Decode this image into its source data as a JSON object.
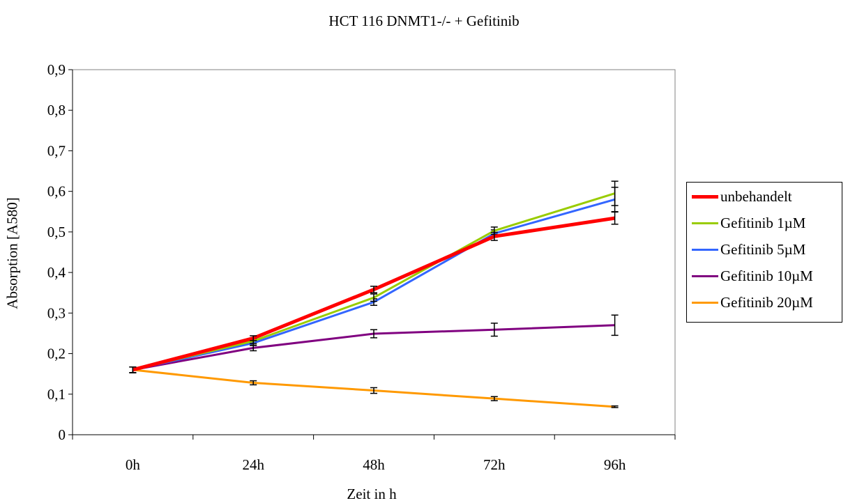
{
  "chart_data": {
    "type": "line",
    "title": "HCT 116 DNMT1-/- + Gefitinib",
    "xlabel": "Zeit in h",
    "ylabel": "Absorption [A580]",
    "categories": [
      "0h",
      "24h",
      "48h",
      "72h",
      "96h"
    ],
    "ylim": [
      0,
      0.9
    ],
    "yticks": [
      "0",
      "0,1",
      "0,2",
      "0,3",
      "0,4",
      "0,5",
      "0,6",
      "0,7",
      "0,8",
      "0,9"
    ],
    "grid": false,
    "legend_position": "right",
    "series": [
      {
        "name": "unbehandelt",
        "color": "#ff0000",
        "width": 5,
        "values": [
          0.16,
          0.238,
          0.358,
          0.489,
          0.534
        ],
        "errors": [
          0.007,
          0.006,
          0.008,
          0.01,
          0.015
        ]
      },
      {
        "name": "Gefitinib 1µM",
        "color": "#99cc00",
        "width": 3,
        "values": [
          0.16,
          0.231,
          0.338,
          0.503,
          0.595
        ],
        "errors": [
          0.007,
          0.006,
          0.009,
          0.009,
          0.03
        ]
      },
      {
        "name": "Gefitinib 5µM",
        "color": "#3366ff",
        "width": 3,
        "values": [
          0.16,
          0.226,
          0.327,
          0.496,
          0.58
        ],
        "errors": [
          0.007,
          0.006,
          0.008,
          0.009,
          0.03
        ]
      },
      {
        "name": "Gefitinib 10µM",
        "color": "#800080",
        "width": 3,
        "values": [
          0.16,
          0.214,
          0.249,
          0.259,
          0.27
        ],
        "errors": [
          0.007,
          0.007,
          0.01,
          0.016,
          0.025
        ]
      },
      {
        "name": "Gefitinib 20µM",
        "color": "#ff9900",
        "width": 3,
        "values": [
          0.16,
          0.128,
          0.109,
          0.089,
          0.069
        ],
        "errors": [
          0.007,
          0.005,
          0.007,
          0.005,
          0.002
        ]
      }
    ]
  }
}
